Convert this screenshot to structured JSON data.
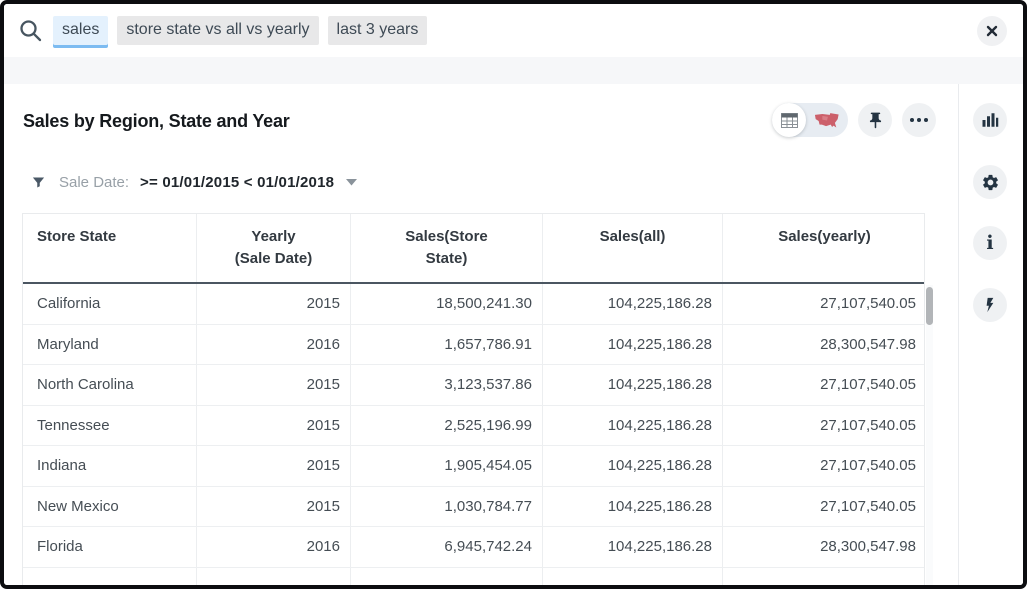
{
  "search_bar": {
    "tokens": [
      {
        "label": "sales",
        "active": true
      },
      {
        "label": "store state vs all vs yearly",
        "active": false
      },
      {
        "label": "last 3 years",
        "active": false
      }
    ]
  },
  "answer": {
    "title": "Sales by Region, State and Year",
    "filter": {
      "label": "Sale Date:",
      "value": ">= 01/01/2015 < 01/01/2018"
    }
  },
  "toolbar_icons": {
    "view_table": "table-grid-icon (selected)",
    "view_map": "us-map-icon",
    "pin": "pushpin-icon",
    "more": "ellipsis-icon"
  },
  "sidebar_icons": {
    "change_visualization": "bar-chart-icon",
    "settings": "gear-icon",
    "info": "letter-i-icon",
    "insights": "lightning-bolt-icon"
  },
  "table": {
    "columns": [
      {
        "line1": "Store State",
        "line2": ""
      },
      {
        "line1": "Yearly",
        "line2": "(Sale Date)"
      },
      {
        "line1": "Sales(Store",
        "line2": "State)"
      },
      {
        "line1": "Sales(all)",
        "line2": ""
      },
      {
        "line1": "Sales(yearly)",
        "line2": ""
      }
    ],
    "rows": [
      [
        "California",
        "2015",
        "18,500,241.30",
        "104,225,186.28",
        "27,107,540.05"
      ],
      [
        "Maryland",
        "2016",
        "1,657,786.91",
        "104,225,186.28",
        "28,300,547.98"
      ],
      [
        "North Carolina",
        "2015",
        "3,123,537.86",
        "104,225,186.28",
        "27,107,540.05"
      ],
      [
        "Tennessee",
        "2015",
        "2,525,196.99",
        "104,225,186.28",
        "27,107,540.05"
      ],
      [
        "Indiana",
        "2015",
        "1,905,454.05",
        "104,225,186.28",
        "27,107,540.05"
      ],
      [
        "New Mexico",
        "2015",
        "1,030,784.77",
        "104,225,186.28",
        "27,107,540.05"
      ],
      [
        "Florida",
        "2016",
        "6,945,742.24",
        "104,225,186.28",
        "28,300,547.98"
      ]
    ]
  },
  "colors": {
    "token_active_bg": "#e4f1fd",
    "token_active_underline": "#7cbbf1",
    "token_bg": "#e8e8e9",
    "icon_dark": "#243442",
    "map_red": "#c9515c",
    "header_rule": "#4b5661",
    "window_border": "#0c0d10"
  }
}
